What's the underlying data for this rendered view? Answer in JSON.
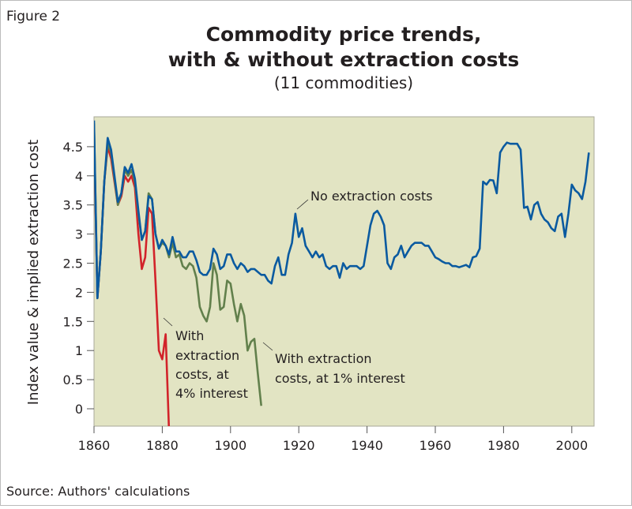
{
  "figure_label": "Figure 2",
  "source": "Source: Authors' calculations",
  "colors": {
    "background": "#e2e4c3",
    "no_cost": "#0a5aa0",
    "one_pct": "#62804c",
    "four_pct": "#d2232a"
  },
  "chart_data": {
    "type": "line",
    "title_line1": "Commodity price trends,",
    "title_line2": "with & without extraction costs",
    "subtitle": "(11 commodities)",
    "xlabel": "",
    "ylabel": "Index value & implied extraction cost",
    "xlim": [
      1860,
      2006
    ],
    "ylim": [
      -0.3,
      5.0
    ],
    "xticks": [
      1860,
      1880,
      1900,
      1920,
      1940,
      1960,
      1980,
      2000
    ],
    "yticks": [
      0,
      0.5,
      1,
      1.5,
      2,
      2.5,
      3,
      3.5,
      4,
      4.5
    ],
    "grid": false,
    "series": [
      {
        "name": "No extraction costs",
        "start_year": 1860,
        "color": "#0a5aa0",
        "values": [
          4.95,
          1.9,
          2.7,
          3.9,
          4.65,
          4.45,
          4.0,
          3.55,
          3.7,
          4.15,
          4.05,
          4.2,
          3.95,
          3.4,
          2.9,
          3.05,
          3.65,
          3.6,
          3.0,
          2.75,
          2.9,
          2.8,
          2.65,
          2.95,
          2.7,
          2.7,
          2.6,
          2.6,
          2.7,
          2.7,
          2.55,
          2.35,
          2.3,
          2.3,
          2.4,
          2.75,
          2.65,
          2.4,
          2.45,
          2.65,
          2.65,
          2.5,
          2.4,
          2.5,
          2.45,
          2.35,
          2.4,
          2.4,
          2.35,
          2.3,
          2.3,
          2.2,
          2.15,
          2.45,
          2.6,
          2.3,
          2.3,
          2.65,
          2.85,
          3.35,
          2.95,
          3.1,
          2.8,
          2.7,
          2.6,
          2.7,
          2.6,
          2.65,
          2.45,
          2.4,
          2.45,
          2.45,
          2.25,
          2.5,
          2.4,
          2.45,
          2.45,
          2.45,
          2.4,
          2.45,
          2.8,
          3.15,
          3.35,
          3.4,
          3.3,
          3.15,
          2.5,
          2.4,
          2.6,
          2.65,
          2.8,
          2.6,
          2.7,
          2.8,
          2.85,
          2.85,
          2.85,
          2.8,
          2.8,
          2.7,
          2.6,
          2.57,
          2.53,
          2.5,
          2.5,
          2.45,
          2.45,
          2.43,
          2.45,
          2.47,
          2.43,
          2.6,
          2.62,
          2.75,
          3.9,
          3.85,
          3.93,
          3.92,
          3.7,
          4.4,
          4.5,
          4.57,
          4.55,
          4.55,
          4.55,
          4.45,
          3.45,
          3.47,
          3.25,
          3.5,
          3.55,
          3.35,
          3.25,
          3.2,
          3.1,
          3.05,
          3.3,
          3.35,
          2.95,
          3.35,
          3.85,
          3.75,
          3.7,
          3.6,
          3.9,
          4.4
        ]
      },
      {
        "name": "With extraction costs, at 1% interest",
        "start_year": 1860,
        "color": "#62804c",
        "values": [
          4.9,
          1.9,
          2.7,
          3.9,
          4.55,
          4.4,
          3.95,
          3.5,
          3.7,
          4.1,
          4.0,
          4.1,
          3.9,
          3.35,
          2.9,
          3.05,
          3.7,
          3.6,
          3.0,
          2.75,
          2.85,
          2.8,
          2.6,
          2.85,
          2.6,
          2.65,
          2.45,
          2.4,
          2.5,
          2.45,
          2.25,
          1.75,
          1.6,
          1.5,
          1.75,
          2.5,
          2.3,
          1.7,
          1.75,
          2.2,
          2.15,
          1.8,
          1.5,
          1.8,
          1.6,
          1.0,
          1.15,
          1.2,
          0.6,
          0.05
        ]
      },
      {
        "name": "With extraction costs, at 4% interest",
        "start_year": 1860,
        "color": "#d2232a",
        "values": [
          4.7,
          1.9,
          2.7,
          3.9,
          4.5,
          4.3,
          3.9,
          3.5,
          3.65,
          4.0,
          3.9,
          4.0,
          3.8,
          3.0,
          2.4,
          2.6,
          3.45,
          3.35,
          2.2,
          1.0,
          0.85,
          1.28,
          -0.4
        ]
      }
    ],
    "annotations": {
      "no_cost": "No extraction costs",
      "one_pct": [
        "With extraction",
        "costs, at 1% interest"
      ],
      "four_pct": [
        "With",
        "extraction",
        "costs, at",
        "4% interest"
      ]
    }
  }
}
